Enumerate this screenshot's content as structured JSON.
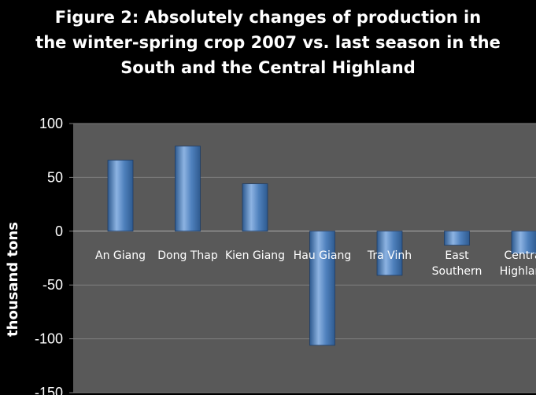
{
  "chart_data": {
    "type": "bar",
    "title_lines": [
      "Figure 2: Absolutely  changes of  production in",
      "the winter-spring crop 2007 vs. last season in the",
      "South and the Central Highland"
    ],
    "title": "Figure 2: Absolutely  changes of  production in the winter-spring crop 2007 vs. last season in the South and the Central Highland",
    "ylabel": "thousand tons",
    "xlabel": "",
    "categories": [
      [
        "An Giang"
      ],
      [
        "Dong Thap"
      ],
      [
        "Kien Giang"
      ],
      [
        "Hau Giang"
      ],
      [
        "Tra Vinh"
      ],
      [
        "East",
        "Southern"
      ],
      [
        "Central",
        "Highland"
      ]
    ],
    "values": [
      66,
      79,
      44,
      -106,
      -41,
      -13,
      -21
    ],
    "ylim": [
      -150,
      100
    ],
    "yticks": [
      100,
      50,
      0,
      -50,
      -100,
      -150
    ],
    "grid": true,
    "legend": "none",
    "colors": {
      "background": "#000000",
      "plot_area": "#595959",
      "grid": "#7f7f7f",
      "bar_light": "#8db3e2",
      "bar_mid": "#4f81bd",
      "bar_dark": "#2e5a8f",
      "text": "#ffffff"
    }
  }
}
